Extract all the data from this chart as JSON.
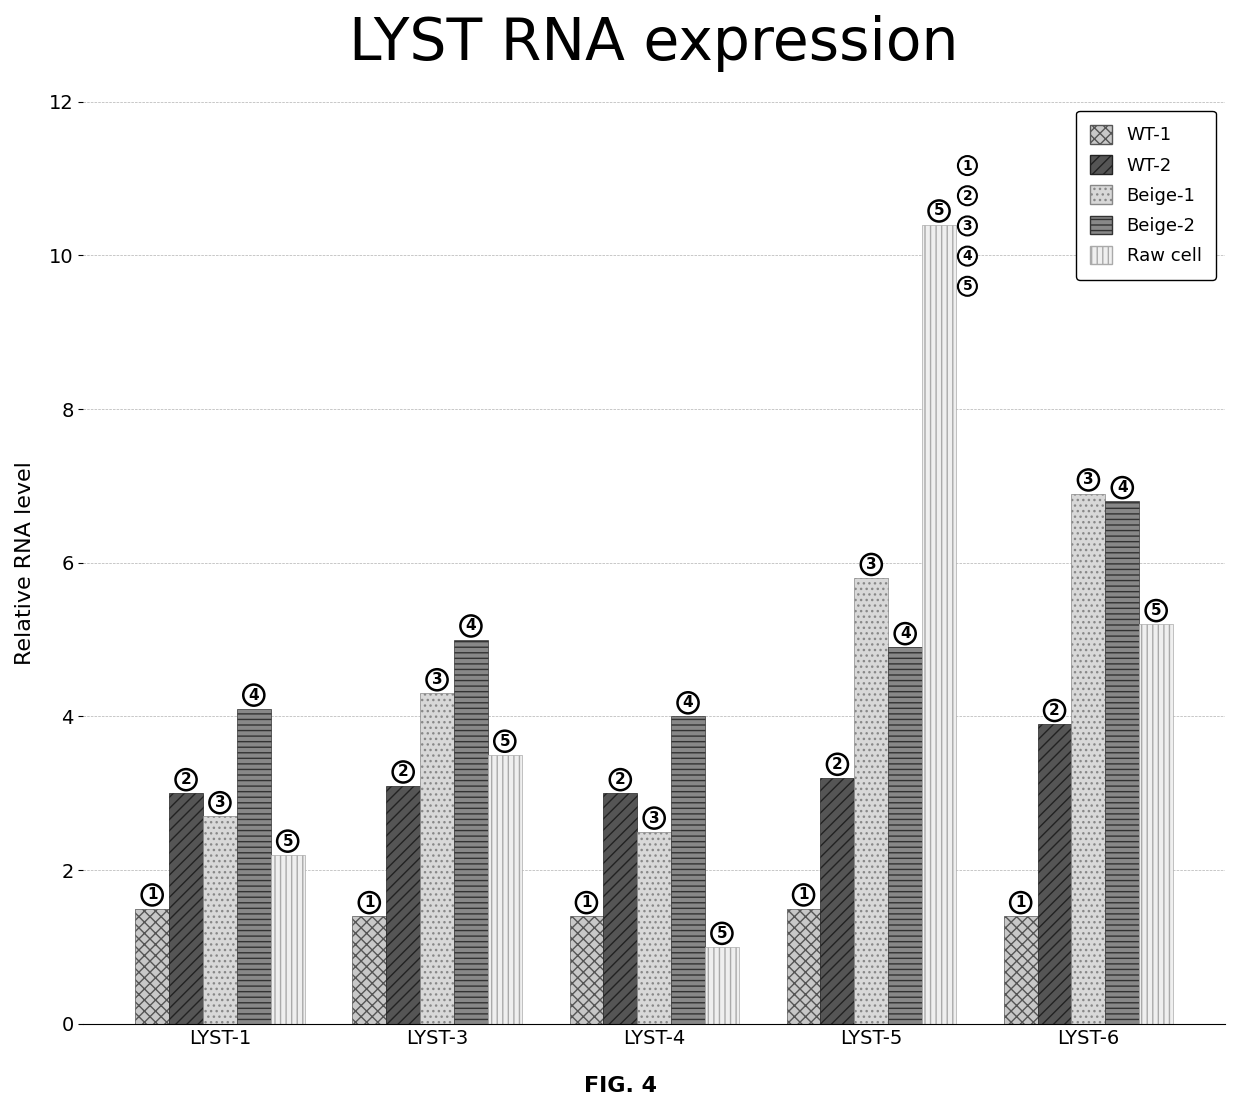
{
  "title": "LYST RNA expression",
  "xlabel_bottom": "FIG. 4",
  "ylabel": "Relative RNA level",
  "categories": [
    "LYST-1",
    "LYST-3",
    "LYST-4",
    "LYST-5",
    "LYST-6"
  ],
  "series_labels": [
    "WT-1",
    "WT-2",
    "Beige-1",
    "Beige-2",
    "Raw cell"
  ],
  "series_numbers": [
    "1",
    "2",
    "3",
    "4",
    "5"
  ],
  "values": [
    [
      1.5,
      1.4,
      1.4,
      1.5,
      1.4
    ],
    [
      3.0,
      3.1,
      3.0,
      3.2,
      3.9
    ],
    [
      2.7,
      4.3,
      2.5,
      5.8,
      6.9
    ],
    [
      4.1,
      5.0,
      4.0,
      4.9,
      6.8
    ],
    [
      2.2,
      3.5,
      1.0,
      10.4,
      5.2
    ]
  ],
  "color_specs": [
    {
      "color": "#c8c8c8",
      "hatch": "xxx",
      "edgecolor": "#555555"
    },
    {
      "color": "#555555",
      "hatch": "///",
      "edgecolor": "#222222"
    },
    {
      "color": "#d8d8d8",
      "hatch": "...",
      "edgecolor": "#888888"
    },
    {
      "color": "#888888",
      "hatch": "---",
      "edgecolor": "#333333"
    },
    {
      "color": "#efefef",
      "hatch": "|||",
      "edgecolor": "#aaaaaa"
    }
  ],
  "ylim": [
    0,
    12
  ],
  "yticks": [
    0,
    2,
    4,
    6,
    8,
    10,
    12
  ],
  "title_fontsize": 42,
  "axis_fontsize": 16,
  "tick_fontsize": 14,
  "annot_fontsize": 11,
  "legend_fontsize": 13,
  "fig_width": 12.4,
  "fig_height": 11.07,
  "group_width": 0.78
}
